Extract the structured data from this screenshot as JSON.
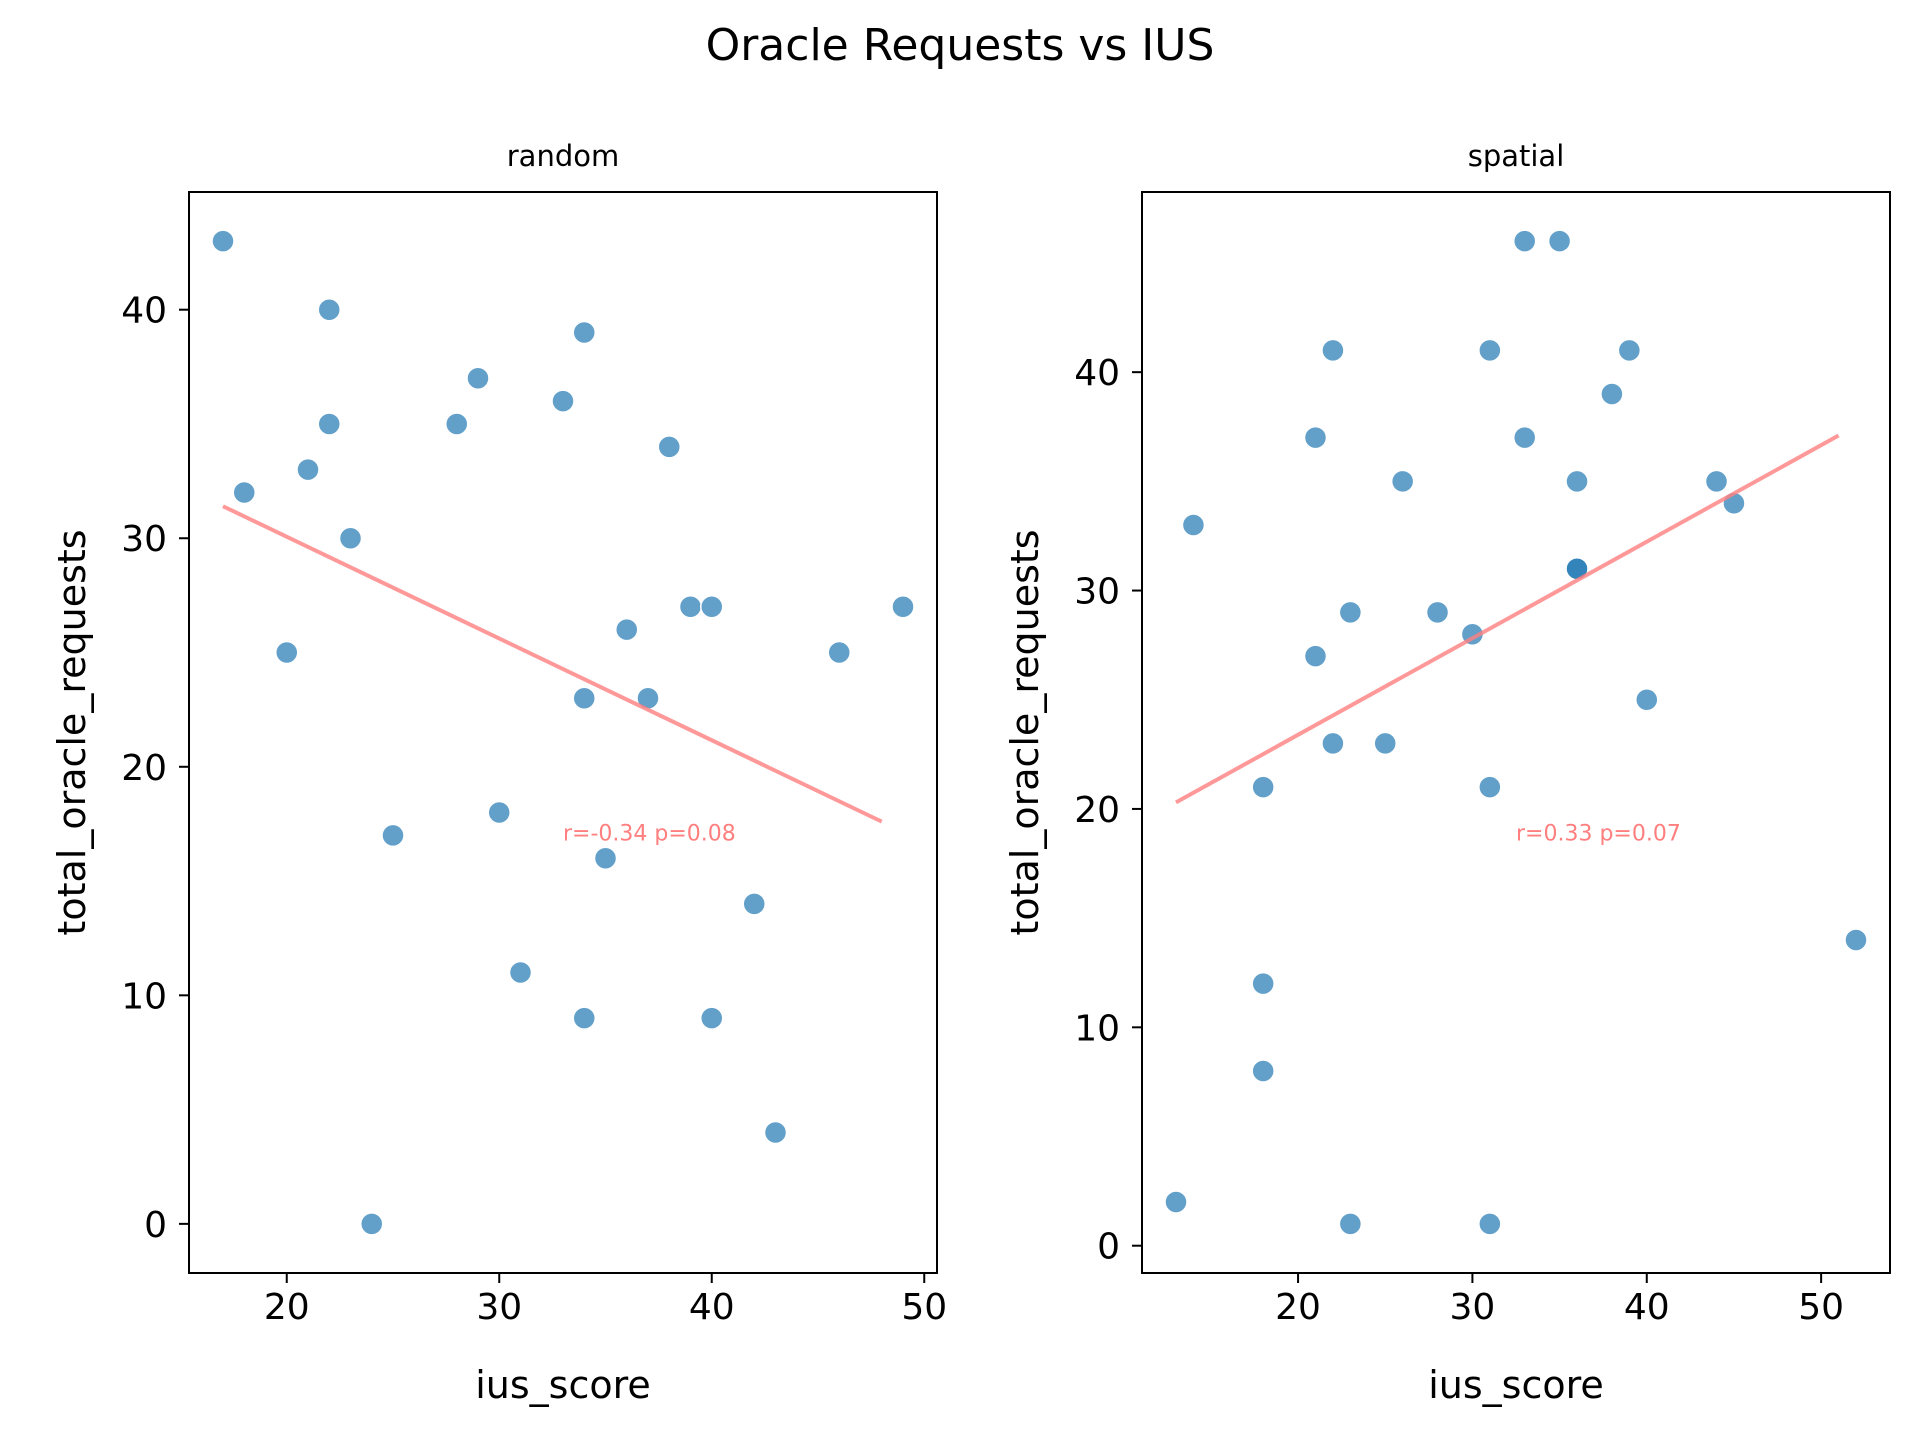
{
  "figure": {
    "title": "Oracle Requests vs IUS"
  },
  "colors": {
    "point": "#1f77b4",
    "trend": "#ff7f7f",
    "axis": "#000000"
  },
  "chart_data": [
    {
      "type": "scatter",
      "title": "random",
      "xlabel": "ius_score",
      "ylabel": "total_oracle_requests",
      "xlim": [
        15.4,
        50.6
      ],
      "ylim": [
        -2.15,
        45.15
      ],
      "xticks": [
        20,
        30,
        40,
        50
      ],
      "yticks": [
        0,
        10,
        20,
        30,
        40
      ],
      "grid": false,
      "points": [
        [
          17,
          43
        ],
        [
          22,
          40
        ],
        [
          34,
          39
        ],
        [
          29,
          37
        ],
        [
          33,
          36
        ],
        [
          22,
          35
        ],
        [
          28,
          35
        ],
        [
          38,
          34
        ],
        [
          21,
          33
        ],
        [
          18,
          32
        ],
        [
          23,
          30
        ],
        [
          39,
          27
        ],
        [
          40,
          27
        ],
        [
          49,
          27
        ],
        [
          36,
          26
        ],
        [
          20,
          25
        ],
        [
          46,
          25
        ],
        [
          34,
          23
        ],
        [
          37,
          23
        ],
        [
          30,
          18
        ],
        [
          25,
          17
        ],
        [
          35,
          16
        ],
        [
          42,
          14
        ],
        [
          31,
          11
        ],
        [
          34,
          9
        ],
        [
          40,
          9
        ],
        [
          43,
          4
        ],
        [
          24,
          0
        ]
      ],
      "trend": {
        "x": [
          17,
          48
        ],
        "y": [
          31.4,
          17.6
        ]
      },
      "annotation": "r=-0.34 p=0.08"
    },
    {
      "type": "scatter",
      "title": "spatial",
      "xlabel": "ius_score",
      "ylabel": "total_oracle_requests",
      "xlim": [
        11.05,
        53.95
      ],
      "ylim": [
        -1.25,
        48.25
      ],
      "xticks": [
        20,
        30,
        40,
        50
      ],
      "yticks": [
        0,
        10,
        20,
        30,
        40
      ],
      "grid": false,
      "points": [
        [
          33,
          46
        ],
        [
          35,
          46
        ],
        [
          22,
          41
        ],
        [
          31,
          41
        ],
        [
          39,
          41
        ],
        [
          38,
          39
        ],
        [
          21,
          37
        ],
        [
          33,
          37
        ],
        [
          26,
          35
        ],
        [
          36,
          35
        ],
        [
          44,
          35
        ],
        [
          45,
          34
        ],
        [
          14,
          33
        ],
        [
          36,
          31
        ],
        [
          36,
          31
        ],
        [
          23,
          29
        ],
        [
          28,
          29
        ],
        [
          30,
          28
        ],
        [
          21,
          27
        ],
        [
          40,
          25
        ],
        [
          22,
          23
        ],
        [
          25,
          23
        ],
        [
          18,
          21
        ],
        [
          31,
          21
        ],
        [
          52,
          14
        ],
        [
          18,
          12
        ],
        [
          18,
          8
        ],
        [
          13,
          2
        ],
        [
          23,
          1
        ],
        [
          31,
          1
        ]
      ],
      "trend": {
        "x": [
          13,
          51
        ],
        "y": [
          20.3,
          37.1
        ]
      },
      "annotation": "r=0.33 p=0.07"
    }
  ]
}
